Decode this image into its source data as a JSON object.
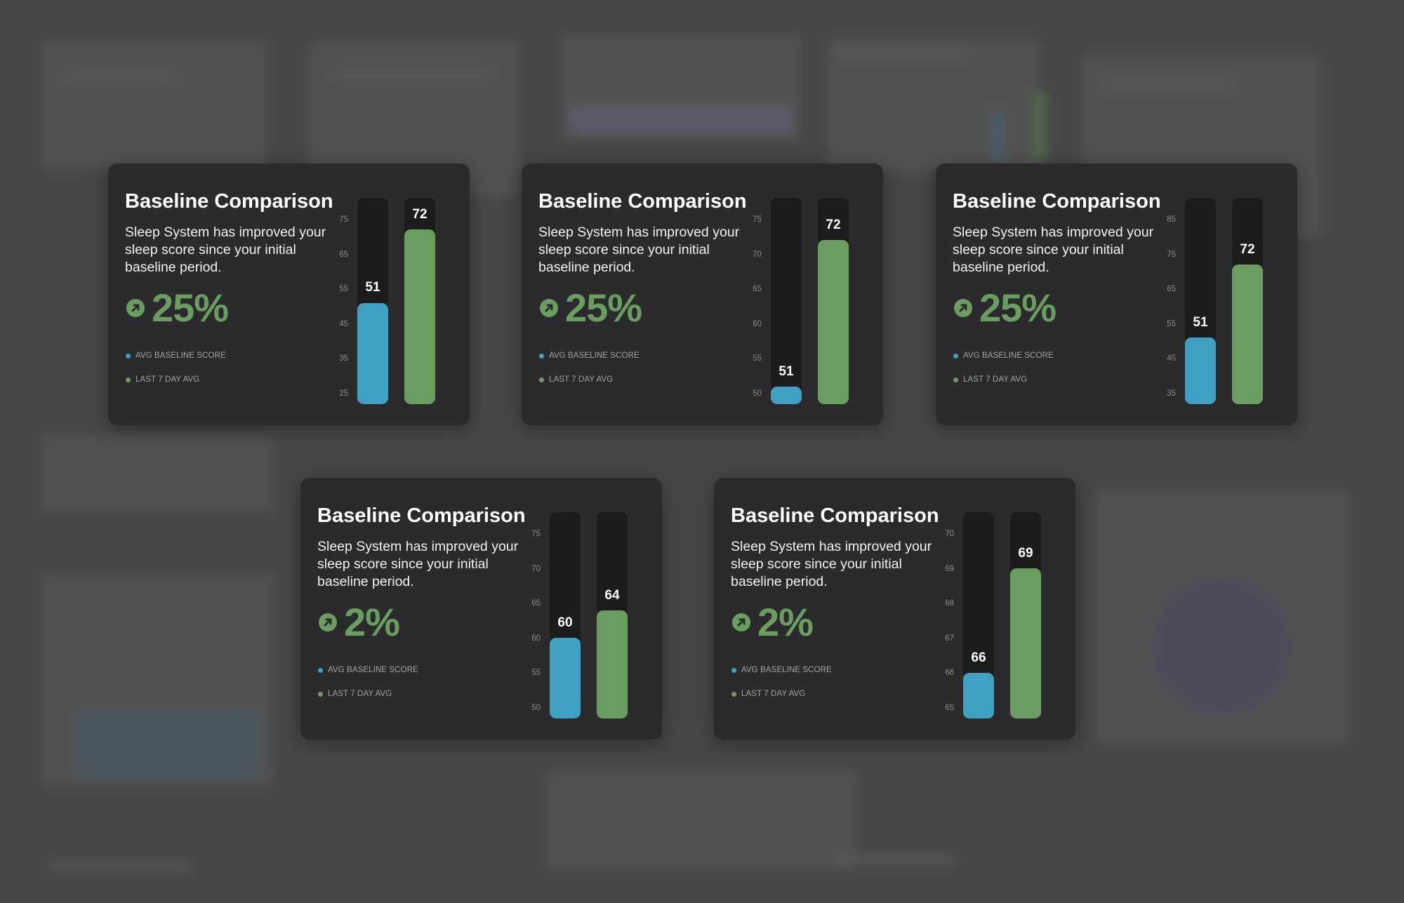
{
  "colors": {
    "baseline": "#3fa0c1",
    "recent": "#6a9e60",
    "track": "#1c1c1d",
    "card": "#2b2b2d",
    "backdrop": "#474747"
  },
  "icons": {
    "delta": "arrow-up-right-circle-icon"
  },
  "cards": [
    {
      "title": "Baseline Comparison",
      "description": "Sleep System has improved your sleep score since your initial baseline period.",
      "delta": "25%",
      "legend": [
        "AVG BASELINE SCORE",
        "LAST 7 DAY AVG"
      ],
      "chart_data": {
        "type": "bar",
        "categories": [
          "AVG BASELINE SCORE",
          "LAST 7 DAY AVG"
        ],
        "values": [
          51,
          72
        ],
        "value_labels": [
          "51",
          "72"
        ],
        "ticks": [
          "75",
          "65",
          "55",
          "45",
          "35",
          "25"
        ],
        "ylim": [
          22,
          81
        ]
      }
    },
    {
      "title": "Baseline Comparison",
      "description": "Sleep System has improved your sleep score since your initial baseline period.",
      "delta": "25%",
      "legend": [
        "AVG BASELINE SCORE",
        "LAST 7 DAY AVG"
      ],
      "chart_data": {
        "type": "bar",
        "categories": [
          "AVG BASELINE SCORE",
          "LAST 7 DAY AVG"
        ],
        "values": [
          51,
          72
        ],
        "value_labels": [
          "51",
          "72"
        ],
        "ticks": [
          "75",
          "70",
          "65",
          "60",
          "55",
          "50"
        ],
        "ylim": [
          48.5,
          78
        ]
      }
    },
    {
      "title": "Baseline Comparison",
      "description": "Sleep System has improved your sleep score since your initial baseline period.",
      "delta": "25%",
      "legend": [
        "AVG BASELINE SCORE",
        "LAST 7 DAY AVG"
      ],
      "chart_data": {
        "type": "bar",
        "categories": [
          "AVG BASELINE SCORE",
          "LAST 7 DAY AVG"
        ],
        "values": [
          51,
          72
        ],
        "value_labels": [
          "51",
          "72"
        ],
        "ticks": [
          "85",
          "75",
          "65",
          "55",
          "45",
          "35"
        ],
        "ylim": [
          32,
          91
        ]
      }
    },
    {
      "title": "Baseline Comparison",
      "description": "Sleep System has improved your sleep score since your initial baseline period.",
      "delta": "2%",
      "legend": [
        "AVG BASELINE SCORE",
        "LAST 7 DAY AVG"
      ],
      "chart_data": {
        "type": "bar",
        "categories": [
          "AVG BASELINE SCORE",
          "LAST 7 DAY AVG"
        ],
        "values": [
          60,
          64
        ],
        "value_labels": [
          "60",
          "64"
        ],
        "ticks": [
          "75",
          "70",
          "65",
          "60",
          "55",
          "50"
        ],
        "ylim": [
          48.5,
          78
        ]
      }
    },
    {
      "title": "Baseline Comparison",
      "description": "Sleep System has improved your sleep score since your initial baseline period.",
      "delta": "2%",
      "legend": [
        "AVG BASELINE SCORE",
        "LAST 7 DAY AVG"
      ],
      "chart_data": {
        "type": "bar",
        "categories": [
          "AVG BASELINE SCORE",
          "LAST 7 DAY AVG"
        ],
        "values": [
          66,
          69
        ],
        "value_labels": [
          "66",
          "69"
        ],
        "ticks": [
          "70",
          "69",
          "68",
          "67",
          "66",
          "65"
        ],
        "ylim": [
          64.7,
          70.6
        ]
      }
    }
  ]
}
